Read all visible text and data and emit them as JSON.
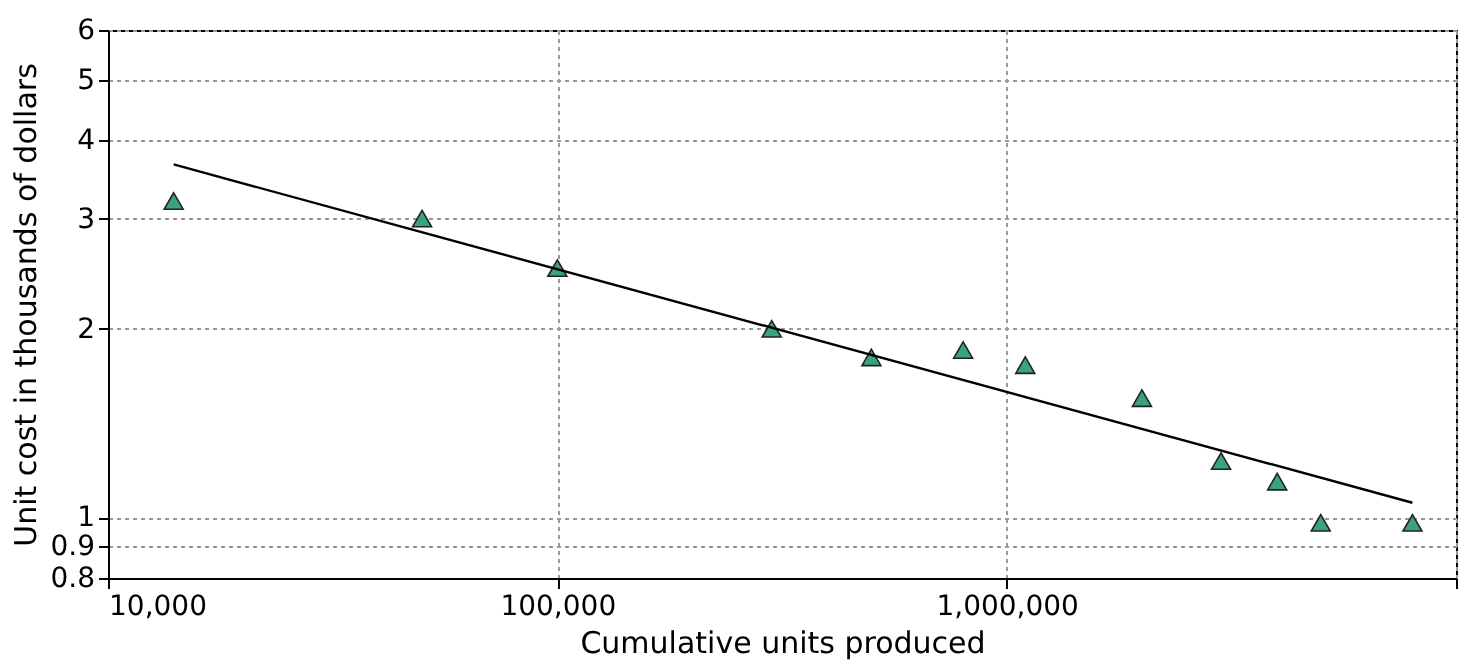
{
  "chart_data": {
    "type": "scatter",
    "xlabel": "Cumulative units produced",
    "ylabel": "Unit cost in thousands of dollars",
    "log": "xy",
    "grid": true,
    "xlim": [
      10000,
      10000000
    ],
    "xticks": [
      {
        "value": 10000,
        "label": "10,000"
      },
      {
        "value": 100000,
        "label": "100,000"
      },
      {
        "value": 1000000,
        "label": "1,000,000"
      },
      {
        "value": 10000000,
        "label": null
      }
    ],
    "ylim": [
      0.8,
      6
    ],
    "yticks": [
      0.8,
      0.9,
      1,
      2,
      3,
      4,
      5,
      6
    ],
    "series": [
      {
        "color": "#3aa37a",
        "marker": "triangle",
        "x": [
          14000,
          50000,
          100000,
          300000,
          500000,
          800000,
          1100000,
          2000000,
          3000000,
          4000000,
          5000000,
          8000000
        ],
        "values": [
          3.2,
          3.0,
          2.5,
          2.0,
          1.8,
          1.85,
          1.75,
          1.55,
          1.23,
          1.14,
          0.98,
          0.98
        ]
      },
      {
        "type": "line",
        "color": "#000000",
        "marker": "none",
        "line_style": "solid",
        "x": [
          14000,
          8000000
        ],
        "values": [
          3.66,
          1.055
        ]
      }
    ]
  }
}
